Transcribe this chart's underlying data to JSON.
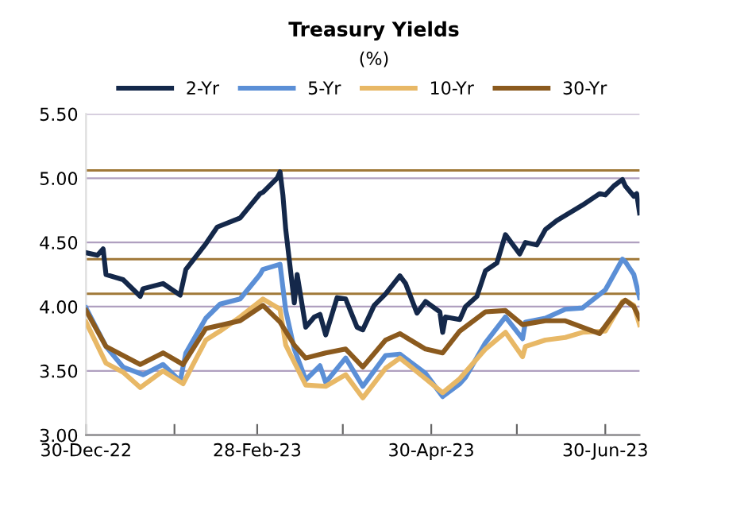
{
  "chart_data": {
    "type": "line",
    "title": "Treasury Yields",
    "subtitle": "(%)",
    "xlim": [
      "2022-12-30",
      "2023-07-12"
    ],
    "xticks": [
      {
        "value": "2022-12-30",
        "label": "30-Dec-22"
      },
      {
        "value": "2023-01-30",
        "label": null
      },
      {
        "value": "2023-02-28",
        "label": "28-Feb-23"
      },
      {
        "value": "2023-03-30",
        "label": null
      },
      {
        "value": "2023-04-30",
        "label": "30-Apr-23"
      },
      {
        "value": "2023-05-30",
        "label": null
      },
      {
        "value": "2023-06-30",
        "label": "30-Jun-23"
      }
    ],
    "ylim": [
      3.0,
      5.5
    ],
    "yticks": [
      {
        "value": 3.0,
        "label": "3.00"
      },
      {
        "value": 3.5,
        "label": "3.50"
      },
      {
        "value": 4.0,
        "label": "4.00"
      },
      {
        "value": 4.5,
        "label": "4.50"
      },
      {
        "value": 5.0,
        "label": "5.00"
      },
      {
        "value": 5.5,
        "label": "5.50"
      }
    ],
    "grid": "y",
    "legend": "top",
    "marker": "none",
    "line_style": "solid",
    "ref_lines": [
      {
        "axis": "y",
        "value": 5.06,
        "color": "#a07838"
      },
      {
        "axis": "y",
        "value": 4.37,
        "color": "#a07838"
      },
      {
        "axis": "y",
        "value": 4.1,
        "color": "#a07838"
      }
    ],
    "series": [
      {
        "name": "2-Yr",
        "color": "#14284a",
        "x": [
          "2022-12-30",
          "2023-01-03",
          "2023-01-05",
          "2023-01-06",
          "2023-01-12",
          "2023-01-18",
          "2023-01-19",
          "2023-01-26",
          "2023-02-01",
          "2023-02-03",
          "2023-02-10",
          "2023-02-14",
          "2023-02-22",
          "2023-03-01",
          "2023-03-02",
          "2023-03-07",
          "2023-03-08",
          "2023-03-09",
          "2023-03-10",
          "2023-03-13",
          "2023-03-14",
          "2023-03-17",
          "2023-03-20",
          "2023-03-22",
          "2023-03-24",
          "2023-03-28",
          "2023-03-31",
          "2023-04-04",
          "2023-04-06",
          "2023-04-10",
          "2023-04-14",
          "2023-04-19",
          "2023-04-21",
          "2023-04-25",
          "2023-04-28",
          "2023-05-03",
          "2023-05-04",
          "2023-05-05",
          "2023-05-10",
          "2023-05-12",
          "2023-05-16",
          "2023-05-19",
          "2023-05-23",
          "2023-05-26",
          "2023-05-31",
          "2023-06-02",
          "2023-06-06",
          "2023-06-09",
          "2023-06-13",
          "2023-06-16",
          "2023-06-22",
          "2023-06-28",
          "2023-06-30",
          "2023-07-03",
          "2023-07-06",
          "2023-07-07",
          "2023-07-10",
          "2023-07-11",
          "2023-07-12"
        ],
        "values": [
          4.42,
          4.4,
          4.45,
          4.25,
          4.21,
          4.08,
          4.14,
          4.18,
          4.09,
          4.29,
          4.49,
          4.62,
          4.69,
          4.88,
          4.89,
          5.0,
          5.05,
          4.87,
          4.6,
          4.03,
          4.25,
          3.84,
          3.92,
          3.94,
          3.78,
          4.07,
          4.06,
          3.84,
          3.82,
          4.01,
          4.1,
          4.24,
          4.18,
          3.95,
          4.04,
          3.96,
          3.8,
          3.92,
          3.9,
          4.0,
          4.08,
          4.28,
          4.34,
          4.56,
          4.41,
          4.5,
          4.48,
          4.6,
          4.67,
          4.71,
          4.79,
          4.88,
          4.87,
          4.94,
          4.99,
          4.94,
          4.86,
          4.88,
          4.73
        ]
      },
      {
        "name": "5-Yr",
        "color": "#5b8fd6",
        "x": [
          "2022-12-30",
          "2023-01-06",
          "2023-01-12",
          "2023-01-19",
          "2023-01-26",
          "2023-02-01",
          "2023-02-03",
          "2023-02-10",
          "2023-02-15",
          "2023-02-22",
          "2023-03-01",
          "2023-03-02",
          "2023-03-08",
          "2023-03-10",
          "2023-03-13",
          "2023-03-17",
          "2023-03-22",
          "2023-03-24",
          "2023-03-31",
          "2023-04-06",
          "2023-04-14",
          "2023-04-19",
          "2023-04-28",
          "2023-05-04",
          "2023-05-10",
          "2023-05-12",
          "2023-05-19",
          "2023-05-26",
          "2023-06-01",
          "2023-06-02",
          "2023-06-09",
          "2023-06-16",
          "2023-06-22",
          "2023-06-30",
          "2023-07-06",
          "2023-07-07",
          "2023-07-10",
          "2023-07-12"
        ],
        "values": [
          3.99,
          3.69,
          3.53,
          3.47,
          3.55,
          3.42,
          3.64,
          3.91,
          4.02,
          4.06,
          4.25,
          4.29,
          4.33,
          3.97,
          3.67,
          3.43,
          3.54,
          3.41,
          3.6,
          3.38,
          3.62,
          3.63,
          3.48,
          3.3,
          3.4,
          3.45,
          3.72,
          3.92,
          3.75,
          3.88,
          3.91,
          3.98,
          3.99,
          4.13,
          4.37,
          4.35,
          4.25,
          4.07
        ]
      },
      {
        "name": "10-Yr",
        "color": "#e8b866",
        "x": [
          "2022-12-30",
          "2023-01-06",
          "2023-01-12",
          "2023-01-18",
          "2023-01-26",
          "2023-02-02",
          "2023-02-10",
          "2023-02-15",
          "2023-02-22",
          "2023-03-02",
          "2023-03-08",
          "2023-03-10",
          "2023-03-17",
          "2023-03-24",
          "2023-03-31",
          "2023-04-06",
          "2023-04-14",
          "2023-04-19",
          "2023-04-28",
          "2023-05-04",
          "2023-05-10",
          "2023-05-19",
          "2023-05-26",
          "2023-06-01",
          "2023-06-02",
          "2023-06-09",
          "2023-06-16",
          "2023-06-22",
          "2023-06-30",
          "2023-07-06",
          "2023-07-07",
          "2023-07-10",
          "2023-07-12"
        ],
        "values": [
          3.88,
          3.56,
          3.49,
          3.37,
          3.5,
          3.4,
          3.74,
          3.81,
          3.92,
          4.06,
          3.98,
          3.7,
          3.39,
          3.38,
          3.47,
          3.29,
          3.52,
          3.6,
          3.44,
          3.33,
          3.44,
          3.67,
          3.8,
          3.61,
          3.69,
          3.74,
          3.76,
          3.8,
          3.81,
          4.04,
          4.05,
          4.01,
          3.86
        ]
      },
      {
        "name": "30-Yr",
        "color": "#8b5a1e",
        "x": [
          "2022-12-30",
          "2023-01-06",
          "2023-01-12",
          "2023-01-18",
          "2023-01-26",
          "2023-02-02",
          "2023-02-10",
          "2023-02-22",
          "2023-03-02",
          "2023-03-08",
          "2023-03-13",
          "2023-03-17",
          "2023-03-24",
          "2023-03-31",
          "2023-04-06",
          "2023-04-14",
          "2023-04-19",
          "2023-04-28",
          "2023-05-04",
          "2023-05-10",
          "2023-05-19",
          "2023-05-26",
          "2023-06-01",
          "2023-06-09",
          "2023-06-16",
          "2023-06-22",
          "2023-06-28",
          "2023-06-30",
          "2023-07-06",
          "2023-07-07",
          "2023-07-10",
          "2023-07-12"
        ],
        "values": [
          3.97,
          3.69,
          3.62,
          3.55,
          3.64,
          3.55,
          3.83,
          3.89,
          4.01,
          3.88,
          3.7,
          3.6,
          3.64,
          3.67,
          3.53,
          3.74,
          3.79,
          3.67,
          3.64,
          3.81,
          3.96,
          3.97,
          3.86,
          3.89,
          3.89,
          3.84,
          3.79,
          3.85,
          4.03,
          4.05,
          4.0,
          3.91
        ]
      }
    ]
  }
}
